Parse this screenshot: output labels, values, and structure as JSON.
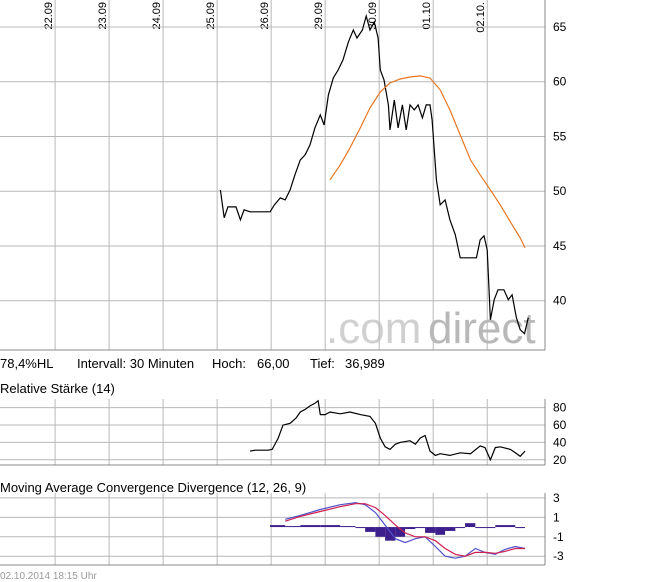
{
  "chart_data": [
    {
      "type": "line",
      "xlim": [
        -1.02,
        9.07
      ],
      "ylim": [
        35.5,
        67.46
      ],
      "xticks": [
        {
          "value": 0,
          "label": "22.09"
        },
        {
          "value": 1,
          "label": "23.09"
        },
        {
          "value": 2,
          "label": "24.09"
        },
        {
          "value": 3,
          "label": "25.09"
        },
        {
          "value": 4,
          "label": "26.09"
        },
        {
          "value": 5,
          "label": "29.09"
        },
        {
          "value": 6,
          "label": "30.09"
        },
        {
          "value": 7,
          "label": "01.10"
        },
        {
          "value": 8,
          "label": "02.10."
        }
      ],
      "yticks": [
        40,
        45,
        50,
        55,
        60,
        65
      ],
      "grid": true,
      "series": [
        {
          "color": "#000000",
          "x": [
            3.06,
            3.13,
            3.2,
            3.35,
            3.43,
            3.5,
            3.61,
            3.8,
            3.98,
            4.06,
            4.17,
            4.26,
            4.35,
            4.44,
            4.54,
            4.63,
            4.72,
            4.81,
            4.91,
            4.98,
            5.06,
            5.15,
            5.24,
            5.33,
            5.43,
            5.52,
            5.59,
            5.69,
            5.76,
            5.83,
            5.91,
            5.98,
            6.02,
            6.09,
            6.17,
            6.2,
            6.28,
            6.35,
            6.43,
            6.5,
            6.57,
            6.65,
            6.72,
            6.8,
            6.87,
            6.94,
            6.98,
            7.06,
            7.13,
            7.22,
            7.31,
            7.41,
            7.5,
            7.65,
            7.8,
            7.87,
            7.94,
            8.0,
            8.06,
            8.13,
            8.2,
            8.31,
            8.39,
            8.46,
            8.54,
            8.61,
            8.69,
            8.76
          ],
          "values": [
            50.12,
            47.57,
            48.57,
            48.57,
            47.39,
            48.3,
            48.12,
            48.12,
            48.12,
            48.76,
            49.39,
            49.21,
            50.12,
            51.49,
            52.86,
            53.32,
            54.23,
            55.78,
            56.97,
            56.05,
            58.79,
            60.34,
            61.07,
            61.99,
            63.63,
            64.72,
            63.99,
            64.72,
            66.0,
            64.72,
            65.45,
            63.99,
            61.07,
            60.16,
            57.88,
            55.6,
            58.34,
            55.78,
            57.88,
            55.6,
            57.88,
            57.42,
            57.88,
            56.69,
            57.88,
            57.88,
            56.51,
            51.04,
            48.76,
            49.21,
            47.39,
            46.02,
            43.92,
            43.92,
            43.92,
            45.56,
            45.93,
            44.65,
            38.26,
            40.09,
            41.0,
            41.0,
            40.09,
            40.54,
            38.45,
            37.35,
            36.99,
            38.45
          ]
        },
        {
          "color": "#e87722",
          "x": [
            5.09,
            5.28,
            5.46,
            5.65,
            5.83,
            6.02,
            6.2,
            6.39,
            6.57,
            6.76,
            6.94,
            7.13,
            7.31,
            7.5,
            7.69,
            7.87,
            8.06,
            8.24,
            8.43,
            8.61,
            8.7
          ],
          "values": [
            51.04,
            52.41,
            53.96,
            55.78,
            57.61,
            59.07,
            59.89,
            60.25,
            60.43,
            60.53,
            60.34,
            59.25,
            57.42,
            55.14,
            52.86,
            51.49,
            50.12,
            48.76,
            47.2,
            45.74,
            44.83
          ]
        }
      ]
    },
    {
      "type": "line",
      "title": "Relative Stärke (14)",
      "xlim": [
        -1.02,
        9.07
      ],
      "ylim": [
        14,
        90
      ],
      "xticks": [
        0,
        1,
        2,
        3,
        4,
        5,
        6,
        7,
        8
      ],
      "yticks": [
        20,
        40,
        60,
        80
      ],
      "grid": true,
      "series": [
        {
          "color": "#000000",
          "x": [
            3.61,
            3.7,
            3.94,
            4.02,
            4.13,
            4.22,
            4.35,
            4.46,
            4.54,
            4.63,
            4.72,
            4.81,
            4.87,
            4.91,
            5.0,
            5.09,
            5.28,
            5.46,
            5.65,
            5.83,
            5.93,
            6.02,
            6.11,
            6.2,
            6.3,
            6.39,
            6.57,
            6.67,
            6.76,
            6.85,
            6.94,
            7.04,
            7.13,
            7.31,
            7.5,
            7.69,
            7.87,
            7.96,
            8.06,
            8.15,
            8.24,
            8.43,
            8.52,
            8.61,
            8.7
          ],
          "values": [
            30,
            31,
            31,
            32,
            45,
            60,
            62,
            68,
            75,
            78,
            82,
            85,
            88,
            72,
            72,
            75,
            73,
            75,
            72,
            70,
            62,
            45,
            35,
            32,
            38,
            40,
            42,
            38,
            45,
            48,
            30,
            25,
            27,
            25,
            28,
            27,
            36,
            34,
            20,
            34,
            35,
            32,
            28,
            24,
            30
          ]
        }
      ]
    },
    {
      "type": "line",
      "title": "Moving Average Convergence Divergence (12, 26, 9)",
      "xlim": [
        -1.02,
        9.07
      ],
      "ylim": [
        -3.9,
        3.5
      ],
      "xticks": [
        0,
        1,
        2,
        3,
        4,
        5,
        6,
        7,
        8
      ],
      "yticks": [
        -3,
        -1,
        1,
        3
      ],
      "grid": true,
      "series": [
        {
          "type": "bar",
          "color": "#3c1f8c",
          "x": [
            4.26,
            4.54,
            4.91,
            5.28,
            5.56,
            5.74,
            5.93,
            6.11,
            6.3,
            6.48,
            6.67,
            6.85,
            7.04,
            7.22,
            7.41,
            7.59,
            7.78,
            7.96,
            8.15,
            8.33,
            8.52,
            8.7
          ],
          "values": [
            0.2,
            0.1,
            0.2,
            0.2,
            0.1,
            -0.1,
            -0.5,
            -1.0,
            -1.4,
            -1.0,
            -0.2,
            0.0,
            -0.6,
            -0.8,
            -0.4,
            0.0,
            0.4,
            0.0,
            -0.1,
            0.2,
            0.2,
            0.0
          ]
        },
        {
          "color": "#5050c8",
          "x": [
            4.26,
            4.54,
            4.91,
            5.28,
            5.56,
            5.74,
            5.93,
            6.11,
            6.3,
            6.48,
            6.67,
            6.85,
            7.04,
            7.22,
            7.41,
            7.59,
            7.78,
            7.96,
            8.15,
            8.33,
            8.52,
            8.7
          ],
          "values": [
            0.8,
            1.2,
            1.8,
            2.3,
            2.5,
            2.3,
            1.5,
            0.2,
            -1.2,
            -1.6,
            -1.2,
            -1.0,
            -2.0,
            -3.0,
            -3.2,
            -3.0,
            -2.2,
            -2.6,
            -2.8,
            -2.3,
            -2.0,
            -2.2
          ]
        },
        {
          "color": "#d02050",
          "x": [
            4.26,
            4.54,
            4.91,
            5.28,
            5.56,
            5.74,
            5.93,
            6.11,
            6.3,
            6.48,
            6.67,
            6.85,
            7.04,
            7.22,
            7.41,
            7.59,
            7.78,
            7.96,
            8.15,
            8.33,
            8.52,
            8.7
          ],
          "values": [
            0.6,
            1.1,
            1.6,
            2.1,
            2.4,
            2.4,
            2.0,
            1.2,
            0.2,
            -0.6,
            -1.0,
            -1.0,
            -1.4,
            -2.2,
            -2.8,
            -3.0,
            -2.6,
            -2.6,
            -2.7,
            -2.5,
            -2.2,
            -2.2
          ]
        }
      ]
    }
  ],
  "info": {
    "range": "78,4%HL",
    "interval": "Intervall: 30 Minuten",
    "high_label": "Hoch:",
    "high": "66,00",
    "low_label": "Tief:",
    "low": "36,989"
  },
  "watermark": {
    "part1": ".com",
    "part2": "direct"
  },
  "footer": "02.10.2014 18:15 Uhr"
}
